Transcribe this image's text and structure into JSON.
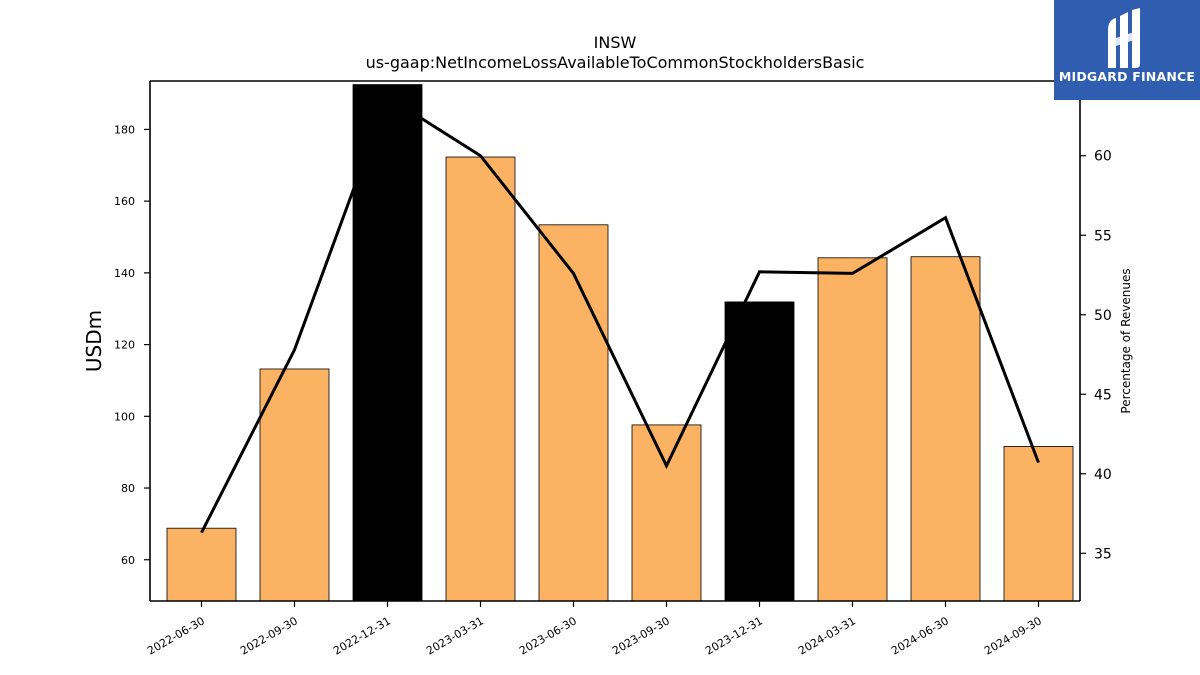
{
  "chart_data": {
    "type": "bar",
    "title": "INSW",
    "subtitle": "us-gaap:NetIncomeLossAvailableToCommonStockholdersBasic",
    "ylabel": "USDm",
    "y2label": "Percentage of Revenues",
    "categories": [
      "2022-06-30",
      "2022-09-30",
      "2022-12-31",
      "2023-03-31",
      "2023-06-30",
      "2023-09-30",
      "2023-12-31",
      "2024-03-31",
      "2024-06-30",
      "2024-09-30"
    ],
    "series": [
      {
        "values": [
          68.8,
          113.2,
          192.5,
          172.3,
          153.4,
          97.6,
          131.9,
          144.2,
          144.5,
          91.6
        ],
        "axis": "left",
        "colors": [
          "#fbb363",
          "#fbb363",
          "#000000",
          "#fbb363",
          "#fbb363",
          "#fbb363",
          "#000000",
          "#fbb363",
          "#fbb363",
          "#fbb363"
        ]
      },
      {
        "values": [
          36.3,
          47.8,
          63.7,
          60.0,
          52.6,
          40.5,
          52.7,
          52.6,
          56.1,
          40.7
        ],
        "axis": "right",
        "color": "#000000"
      }
    ],
    "ylim": [
      48.5,
      193.5
    ],
    "y2lim": [
      32.0,
      64.7
    ],
    "yticks": [
      60,
      80,
      100,
      120,
      140,
      160,
      180
    ],
    "y2ticks": [
      35,
      40,
      45,
      50,
      55,
      60
    ],
    "grid": false,
    "legend": "none"
  },
  "logo": {
    "text": "MIDGARD FINANCE",
    "color": "#2f5db0"
  }
}
